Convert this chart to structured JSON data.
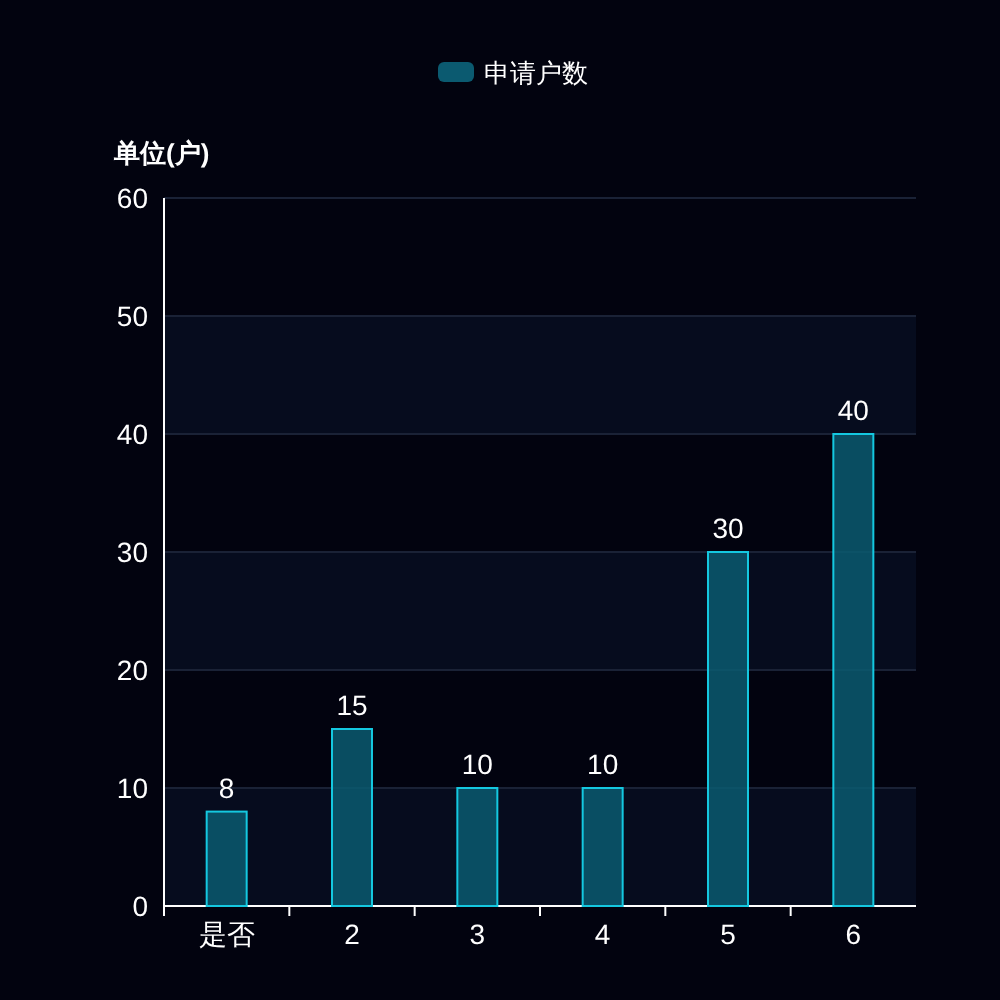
{
  "chart_data": {
    "type": "bar",
    "ylabel": "单位(户)",
    "categories": [
      "是否",
      "2",
      "3",
      "4",
      "5",
      "6"
    ],
    "series": [
      {
        "name": "申请户数",
        "color": "#0b5a70",
        "values": [
          8,
          15,
          10,
          10,
          30,
          40
        ]
      }
    ],
    "ylim": [
      0,
      60
    ],
    "yticks": [
      0,
      10,
      20,
      30,
      40,
      50,
      60
    ],
    "grid": "y",
    "legend": "top",
    "data_labels": true
  }
}
